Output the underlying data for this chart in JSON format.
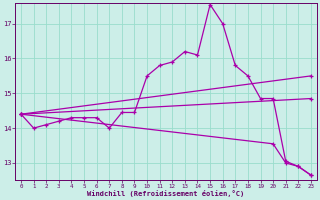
{
  "xlabel": "Windchill (Refroidissement éolien,°C)",
  "ylabel": "",
  "bg_color": "#cceee8",
  "grid_color": "#99ddcc",
  "line_color": "#aa00aa",
  "xlim": [
    -0.5,
    23.5
  ],
  "ylim": [
    12.5,
    17.6
  ],
  "yticks": [
    13,
    14,
    15,
    16,
    17
  ],
  "xticks": [
    0,
    1,
    2,
    3,
    4,
    5,
    6,
    7,
    8,
    9,
    10,
    11,
    12,
    13,
    14,
    15,
    16,
    17,
    18,
    19,
    20,
    21,
    22,
    23
  ],
  "line1_x": [
    0,
    1,
    2,
    3,
    4,
    5,
    6,
    7,
    8,
    9,
    10,
    11,
    12,
    13,
    14,
    15,
    16,
    17,
    18,
    19,
    20,
    21,
    22,
    23
  ],
  "line1_y": [
    14.4,
    14.0,
    14.1,
    14.2,
    14.3,
    14.3,
    14.3,
    14.0,
    14.45,
    14.45,
    15.5,
    15.8,
    15.9,
    16.2,
    16.1,
    17.55,
    17.0,
    15.8,
    15.5,
    14.85,
    14.85,
    13.05,
    12.9,
    12.65
  ],
  "line2_x": [
    0,
    23
  ],
  "line2_y": [
    14.4,
    15.5
  ],
  "line3_x": [
    0,
    23
  ],
  "line3_y": [
    14.4,
    14.85
  ],
  "line4_x": [
    0,
    20,
    21,
    22,
    23
  ],
  "line4_y": [
    14.4,
    13.55,
    13.0,
    12.9,
    12.65
  ]
}
